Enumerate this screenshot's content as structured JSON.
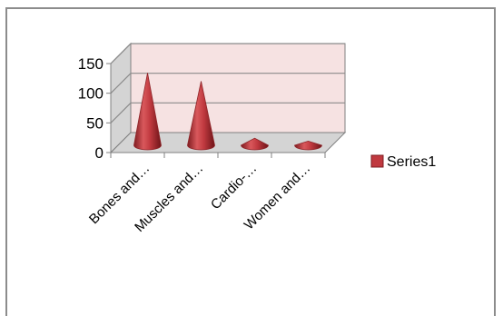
{
  "chart_data": {
    "type": "bar",
    "subtype": "3d-cone",
    "categories": [
      "Bones and…",
      "Muscles and…",
      "Cardio-…",
      "Women and…"
    ],
    "series": [
      {
        "name": "Series1",
        "values": [
          122,
          108,
          12,
          7
        ],
        "color": "#c0393f"
      }
    ],
    "yticks": [
      0,
      50,
      100,
      150
    ],
    "ylim": [
      0,
      150
    ],
    "grid": true,
    "legend": "right",
    "colors": {
      "wall": "#f6e2e2",
      "floor": "#d4d4d4",
      "axis": "#808080"
    }
  }
}
